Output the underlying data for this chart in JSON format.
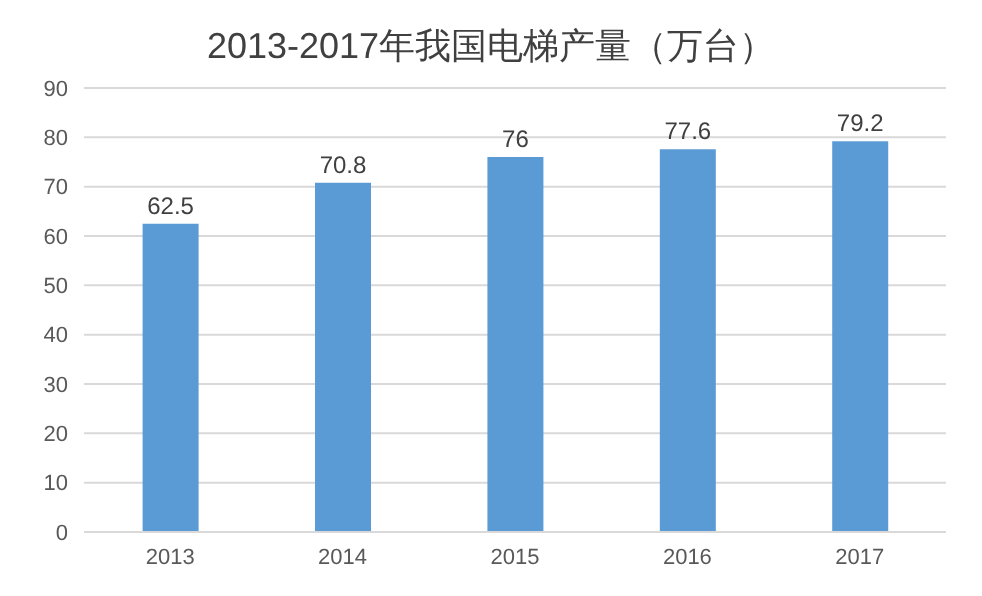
{
  "chart_data": {
    "type": "bar",
    "title": "2013-2017年我国电梯产量（万台）",
    "categories": [
      "2013",
      "2014",
      "2015",
      "2016",
      "2017"
    ],
    "values": [
      62.5,
      70.8,
      76,
      77.6,
      79.2
    ],
    "color": "#5b9bd5",
    "ylim": [
      0,
      90
    ],
    "yticks": [
      0,
      10,
      20,
      30,
      40,
      50,
      60,
      70,
      80,
      90
    ],
    "grid": "y",
    "data_labels": true
  }
}
